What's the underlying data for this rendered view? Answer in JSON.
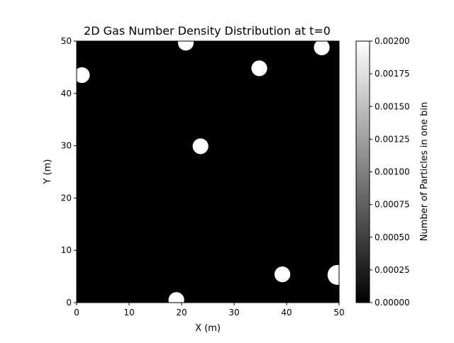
{
  "chart_data": {
    "type": "heatmap",
    "title": "2D Gas Number Density Distribution at t=0",
    "xlabel": "X (m)",
    "ylabel": "Y (m)",
    "xlim": [
      0,
      50
    ],
    "ylim": [
      0,
      50
    ],
    "x_ticks": [
      0,
      10,
      20,
      30,
      40,
      50
    ],
    "y_ticks": [
      0,
      10,
      20,
      30,
      40,
      50
    ],
    "grid": false,
    "colormap": "gray",
    "background_value": 0,
    "colorbar": {
      "label": "Number of Particles in one bin",
      "range": [
        0,
        0.002
      ],
      "ticks": [
        "0.00000",
        "0.00025",
        "0.00050",
        "0.00075",
        "0.00100",
        "0.00125",
        "0.00150",
        "0.00175",
        "0.00200"
      ]
    },
    "blobs": [
      {
        "x": 20.8,
        "y": 49.7,
        "r": 1.5,
        "value": 0.002
      },
      {
        "x": 46.7,
        "y": 48.8,
        "r": 1.5,
        "value": 0.002
      },
      {
        "x": 1.0,
        "y": 43.5,
        "r": 1.5,
        "value": 0.002
      },
      {
        "x": 34.8,
        "y": 44.8,
        "r": 1.5,
        "value": 0.002
      },
      {
        "x": 23.6,
        "y": 29.9,
        "r": 1.5,
        "value": 0.002
      },
      {
        "x": 39.2,
        "y": 5.4,
        "r": 1.5,
        "value": 0.002
      },
      {
        "x": 49.7,
        "y": 5.3,
        "r": 1.9,
        "value": 0.002
      },
      {
        "x": 19.0,
        "y": 0.5,
        "r": 1.5,
        "value": 0.002
      }
    ]
  }
}
